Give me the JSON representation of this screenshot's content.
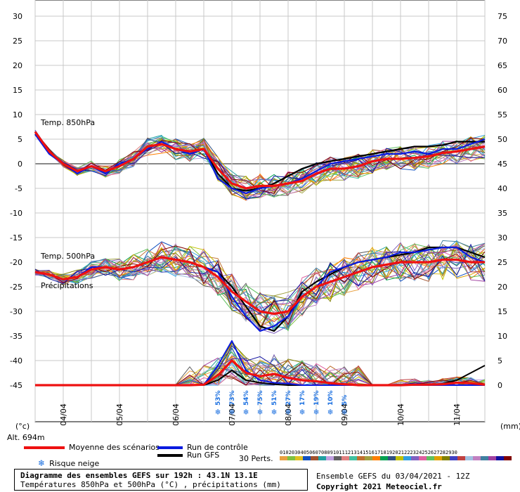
{
  "chart_data": {
    "type": "line",
    "left_axis": {
      "unit_label": "(°c)",
      "ticks": [
        30,
        25,
        20,
        15,
        10,
        5,
        0,
        -5,
        -10,
        -15,
        -20,
        -25,
        -30,
        -35,
        -40,
        -45
      ],
      "range": [
        -45,
        30
      ]
    },
    "right_axis": {
      "unit_label": "(mm)",
      "ticks": [
        75,
        70,
        65,
        60,
        55,
        50,
        45,
        40,
        35,
        30,
        25,
        20,
        15,
        10,
        5,
        0
      ],
      "range": [
        0,
        75
      ]
    },
    "altitude_label": "Alt. 694m",
    "x_ticks": [
      "04/04",
      "05/04",
      "06/04",
      "07/04",
      "08/04",
      "09/04",
      "10/04",
      "11/04"
    ],
    "x_range_hours": [
      0,
      192
    ],
    "panel_labels": {
      "t850": "Temp. 850hPa",
      "t500": "Temp. 500hPa",
      "precip": "Précipitations"
    },
    "snow_risk": [
      {
        "t": 78,
        "label": "53%"
      },
      {
        "t": 84,
        "label": "73%"
      },
      {
        "t": 90,
        "label": "54%"
      },
      {
        "t": 96,
        "label": "75%"
      },
      {
        "t": 102,
        "label": "51%"
      },
      {
        "t": 108,
        "label": "27%"
      },
      {
        "t": 114,
        "label": "17%"
      },
      {
        "t": 120,
        "label": "19%"
      },
      {
        "t": 126,
        "label": "10%"
      },
      {
        "t": 132,
        "label": "5%"
      }
    ],
    "mean_t850": [
      [
        0,
        6.5
      ],
      [
        6,
        2.5
      ],
      [
        12,
        0
      ],
      [
        18,
        -1.5
      ],
      [
        24,
        -0.5
      ],
      [
        30,
        -1.5
      ],
      [
        36,
        -0.5
      ],
      [
        42,
        1
      ],
      [
        48,
        3.5
      ],
      [
        54,
        4
      ],
      [
        60,
        3
      ],
      [
        66,
        2.5
      ],
      [
        72,
        3
      ],
      [
        78,
        -1
      ],
      [
        84,
        -4
      ],
      [
        90,
        -5
      ],
      [
        96,
        -4.5
      ],
      [
        102,
        -4.5
      ],
      [
        108,
        -4
      ],
      [
        114,
        -3.5
      ],
      [
        120,
        -2
      ],
      [
        126,
        -1
      ],
      [
        132,
        -1
      ],
      [
        138,
        -0.5
      ],
      [
        144,
        0.5
      ],
      [
        150,
        1
      ],
      [
        156,
        1
      ],
      [
        162,
        1.2
      ],
      [
        168,
        1.5
      ],
      [
        174,
        2.2
      ],
      [
        180,
        2.5
      ],
      [
        186,
        3
      ],
      [
        192,
        3.5
      ]
    ],
    "mean_t500": [
      [
        0,
        -22
      ],
      [
        6,
        -22.5
      ],
      [
        12,
        -23.5
      ],
      [
        18,
        -23
      ],
      [
        24,
        -21.5
      ],
      [
        30,
        -21
      ],
      [
        36,
        -21.5
      ],
      [
        42,
        -21
      ],
      [
        48,
        -20
      ],
      [
        54,
        -19
      ],
      [
        60,
        -19.5
      ],
      [
        66,
        -20
      ],
      [
        72,
        -21
      ],
      [
        78,
        -23
      ],
      [
        84,
        -26
      ],
      [
        90,
        -28
      ],
      [
        96,
        -30
      ],
      [
        102,
        -30.5
      ],
      [
        108,
        -30
      ],
      [
        114,
        -27
      ],
      [
        120,
        -25
      ],
      [
        126,
        -24
      ],
      [
        132,
        -23
      ],
      [
        138,
        -22
      ],
      [
        144,
        -21
      ],
      [
        150,
        -20.5
      ],
      [
        156,
        -20
      ],
      [
        162,
        -20
      ],
      [
        168,
        -20
      ],
      [
        174,
        -19.5
      ],
      [
        180,
        -19.5
      ],
      [
        186,
        -20
      ],
      [
        192,
        -20
      ]
    ],
    "mean_precip": [
      [
        0,
        0
      ],
      [
        6,
        0
      ],
      [
        12,
        0
      ],
      [
        18,
        0
      ],
      [
        24,
        0
      ],
      [
        30,
        0
      ],
      [
        36,
        0
      ],
      [
        42,
        0
      ],
      [
        48,
        0
      ],
      [
        54,
        0
      ],
      [
        60,
        0
      ],
      [
        66,
        0
      ],
      [
        72,
        0.1
      ],
      [
        78,
        2
      ],
      [
        84,
        5
      ],
      [
        90,
        2.5
      ],
      [
        96,
        1.8
      ],
      [
        102,
        2.3
      ],
      [
        108,
        1.5
      ],
      [
        114,
        1
      ],
      [
        120,
        0.8
      ],
      [
        126,
        0.4
      ],
      [
        132,
        0.2
      ],
      [
        138,
        0
      ],
      [
        144,
        0
      ],
      [
        150,
        0
      ],
      [
        156,
        0
      ],
      [
        162,
        0.1
      ],
      [
        168,
        0.1
      ],
      [
        174,
        0.2
      ],
      [
        180,
        0.5
      ],
      [
        186,
        0.4
      ],
      [
        192,
        0.1
      ]
    ],
    "control_t850": [
      [
        0,
        6
      ],
      [
        6,
        2
      ],
      [
        12,
        0
      ],
      [
        18,
        -2
      ],
      [
        24,
        -0.5
      ],
      [
        30,
        -2
      ],
      [
        36,
        0
      ],
      [
        42,
        1
      ],
      [
        48,
        3
      ],
      [
        54,
        4.5
      ],
      [
        60,
        3
      ],
      [
        66,
        2
      ],
      [
        72,
        3
      ],
      [
        78,
        -3
      ],
      [
        84,
        -5
      ],
      [
        90,
        -6
      ],
      [
        96,
        -5
      ],
      [
        102,
        -4.5
      ],
      [
        108,
        -4
      ],
      [
        114,
        -3
      ],
      [
        120,
        -1.5
      ],
      [
        126,
        0
      ],
      [
        132,
        0.5
      ],
      [
        138,
        1
      ],
      [
        144,
        1.5
      ],
      [
        150,
        2
      ],
      [
        156,
        2
      ],
      [
        162,
        2.5
      ],
      [
        168,
        2
      ],
      [
        174,
        3
      ],
      [
        180,
        3
      ],
      [
        186,
        4
      ],
      [
        192,
        5
      ]
    ],
    "control_t500": [
      [
        0,
        -22
      ],
      [
        6,
        -22.5
      ],
      [
        12,
        -23.5
      ],
      [
        18,
        -23
      ],
      [
        24,
        -21
      ],
      [
        30,
        -21
      ],
      [
        36,
        -21.5
      ],
      [
        42,
        -21
      ],
      [
        48,
        -20
      ],
      [
        54,
        -19
      ],
      [
        60,
        -19.5
      ],
      [
        66,
        -20
      ],
      [
        72,
        -21
      ],
      [
        78,
        -22
      ],
      [
        84,
        -27
      ],
      [
        90,
        -31
      ],
      [
        96,
        -34
      ],
      [
        102,
        -33
      ],
      [
        108,
        -31
      ],
      [
        114,
        -27
      ],
      [
        120,
        -25
      ],
      [
        126,
        -22
      ],
      [
        132,
        -21
      ],
      [
        138,
        -20
      ],
      [
        144,
        -19.5
      ],
      [
        150,
        -19
      ],
      [
        156,
        -18
      ],
      [
        162,
        -18
      ],
      [
        168,
        -17.5
      ],
      [
        174,
        -17
      ],
      [
        180,
        -17
      ],
      [
        186,
        -19
      ],
      [
        192,
        -20
      ]
    ],
    "control_precip": [
      [
        0,
        0
      ],
      [
        6,
        0
      ],
      [
        12,
        0
      ],
      [
        18,
        0
      ],
      [
        24,
        0
      ],
      [
        30,
        0
      ],
      [
        36,
        0
      ],
      [
        42,
        0
      ],
      [
        48,
        0
      ],
      [
        54,
        0
      ],
      [
        60,
        0
      ],
      [
        66,
        0
      ],
      [
        72,
        0
      ],
      [
        78,
        4
      ],
      [
        84,
        9
      ],
      [
        90,
        3
      ],
      [
        96,
        1
      ],
      [
        102,
        0.5
      ],
      [
        108,
        0.3
      ],
      [
        114,
        0
      ],
      [
        120,
        0
      ],
      [
        126,
        0
      ],
      [
        132,
        0
      ],
      [
        138,
        0
      ],
      [
        144,
        0
      ],
      [
        150,
        0
      ],
      [
        156,
        0
      ],
      [
        162,
        0
      ],
      [
        168,
        0
      ],
      [
        174,
        0
      ],
      [
        180,
        0
      ],
      [
        186,
        0
      ],
      [
        192,
        0
      ]
    ],
    "gfs_t850": [
      [
        0,
        6
      ],
      [
        6,
        2.5
      ],
      [
        12,
        0
      ],
      [
        18,
        -1.5
      ],
      [
        24,
        -0.5
      ],
      [
        30,
        -1.5
      ],
      [
        36,
        -0.5
      ],
      [
        42,
        1
      ],
      [
        48,
        3.5
      ],
      [
        54,
        4
      ],
      [
        60,
        3
      ],
      [
        66,
        2.5
      ],
      [
        72,
        3
      ],
      [
        78,
        -2
      ],
      [
        84,
        -5
      ],
      [
        90,
        -5.5
      ],
      [
        96,
        -5
      ],
      [
        102,
        -4
      ],
      [
        108,
        -2.5
      ],
      [
        114,
        -1
      ],
      [
        120,
        0
      ],
      [
        126,
        0.5
      ],
      [
        132,
        1
      ],
      [
        138,
        1.5
      ],
      [
        144,
        2
      ],
      [
        150,
        2.5
      ],
      [
        156,
        3
      ],
      [
        162,
        3.5
      ],
      [
        168,
        3.5
      ],
      [
        174,
        3.8
      ],
      [
        180,
        4.5
      ],
      [
        186,
        4.5
      ],
      [
        192,
        4.5
      ]
    ],
    "gfs_t500": [
      [
        0,
        -22
      ],
      [
        6,
        -22.5
      ],
      [
        12,
        -23.5
      ],
      [
        18,
        -23
      ],
      [
        24,
        -21.5
      ],
      [
        30,
        -21
      ],
      [
        36,
        -21.5
      ],
      [
        42,
        -21
      ],
      [
        48,
        -20
      ],
      [
        54,
        -19
      ],
      [
        60,
        -19.5
      ],
      [
        66,
        -20
      ],
      [
        72,
        -21
      ],
      [
        78,
        -22
      ],
      [
        84,
        -25
      ],
      [
        90,
        -29
      ],
      [
        96,
        -33
      ],
      [
        102,
        -34
      ],
      [
        108,
        -31
      ],
      [
        114,
        -26
      ],
      [
        120,
        -24
      ],
      [
        126,
        -22.5
      ],
      [
        132,
        -21
      ],
      [
        138,
        -20
      ],
      [
        144,
        -19.5
      ],
      [
        150,
        -19
      ],
      [
        156,
        -18.5
      ],
      [
        162,
        -18
      ],
      [
        168,
        -17
      ],
      [
        174,
        -17
      ],
      [
        180,
        -17
      ],
      [
        186,
        -18
      ],
      [
        192,
        -19
      ]
    ],
    "gfs_precip": [
      [
        0,
        0
      ],
      [
        6,
        0
      ],
      [
        12,
        0
      ],
      [
        18,
        0
      ],
      [
        24,
        0
      ],
      [
        30,
        0
      ],
      [
        36,
        0
      ],
      [
        42,
        0
      ],
      [
        48,
        0
      ],
      [
        54,
        0
      ],
      [
        60,
        0
      ],
      [
        66,
        0
      ],
      [
        72,
        0
      ],
      [
        78,
        1
      ],
      [
        84,
        3
      ],
      [
        90,
        1
      ],
      [
        96,
        0.5
      ],
      [
        102,
        0.2
      ],
      [
        108,
        0
      ],
      [
        114,
        0
      ],
      [
        120,
        0
      ],
      [
        126,
        0
      ],
      [
        132,
        0
      ],
      [
        138,
        0
      ],
      [
        144,
        0
      ],
      [
        150,
        0
      ],
      [
        156,
        0
      ],
      [
        162,
        0
      ],
      [
        168,
        0
      ],
      [
        174,
        0.3
      ],
      [
        180,
        1
      ],
      [
        186,
        2.5
      ],
      [
        192,
        4
      ]
    ],
    "perturbation_colors": [
      "#e8a040",
      "#7fc040",
      "#e0c020",
      "#1050c0",
      "#a0522d",
      "#20a0a0",
      "#c0a0e0",
      "#606060",
      "#e08080",
      "#40c0a0",
      "#c07030",
      "#a0a040",
      "#ff7f00",
      "#00a050",
      "#305080",
      "#c0c000",
      "#30a0e0",
      "#8060c0",
      "#e060a0",
      "#60c060",
      "#e0a000",
      "#808000",
      "#4040c0",
      "#c04040",
      "#a0c0e0",
      "#c080c0",
      "#4080a0",
      "#a040a0",
      "#1010a0",
      "#800000"
    ]
  },
  "legend": {
    "mean_label": "Moyenne des scénarios",
    "control_label": "Run de contrôle",
    "gfs_label": "Run GFS",
    "snow_label": "Risque neige",
    "pert_label": "30 Perts.",
    "pert_numbers": "010203040506070809101112131415161718192021222324252627282930",
    "colors": {
      "mean": "#ee1111",
      "control": "#0a1adf",
      "gfs": "#000000",
      "snow": "#1a6fe0"
    }
  },
  "info": {
    "title": "Diagramme des ensembles GEFS sur 192h : 43.1N 13.1E",
    "subtitle": "Températures 850hPa et 500hPa (°C) , précipitations (mm)",
    "run": "Ensemble GEFS du 03/04/2021 - 12Z",
    "copyright": "Copyright 2021 Meteociel.fr"
  }
}
